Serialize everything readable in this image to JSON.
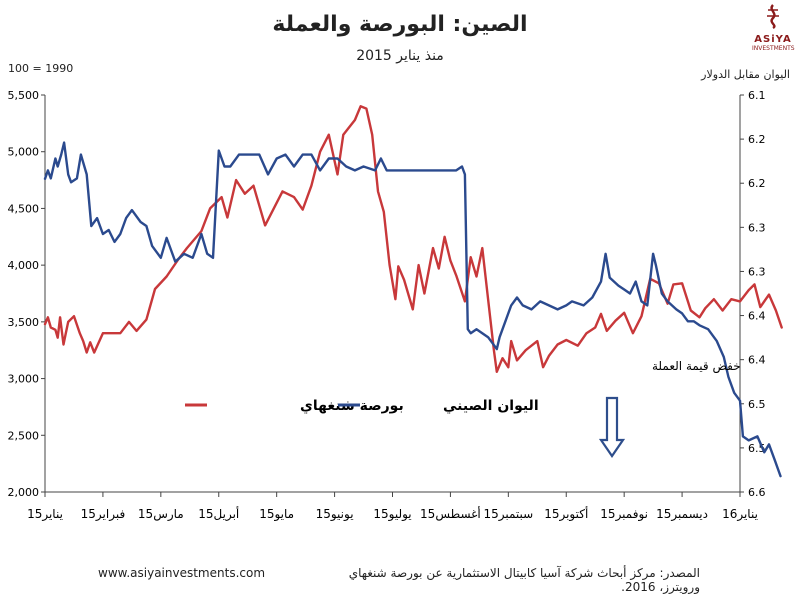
{
  "header": {
    "title": "الصين: البورصة والعملة",
    "subtitle": "منذ يناير 2015",
    "left_unit": "100 = 1990",
    "right_unit": "اليوان مقابل الدولار"
  },
  "brand": {
    "name": "ASiYA",
    "sub": "INVESTMENTS",
    "color": "#8b1a1a"
  },
  "footer": {
    "url": "www.asiyainvestments.com",
    "source": "المصدر: مركز أبحاث شركة آسيا كابيتال الاستثمارية عن بورصة شنغهاي ورويترز، 2016."
  },
  "chart_data": {
    "type": "line",
    "x_labels": [
      "يناير15",
      "فبراير15",
      "مارس15",
      "أبريل15",
      "مايو15",
      "يونيو15",
      "يوليو15",
      "أغسطس15",
      "سبتمبر15",
      "أكتوبر15",
      "نوفمبر15",
      "ديسمبر15",
      "يناير16"
    ],
    "y_left": {
      "min": 2000,
      "max": 5500,
      "ticks": [
        "2,000",
        "2,500",
        "3,000",
        "3,500",
        "4,000",
        "4,500",
        "5,000",
        "5,500"
      ]
    },
    "y_right": {
      "min": 6.1,
      "max": 6.6,
      "inverted": true,
      "ticks": [
        "6.1",
        "6.2",
        "6.2",
        "6.3",
        "6.3",
        "6.4",
        "6.4",
        "6.5",
        "6.5",
        "6.6"
      ]
    },
    "legend": {
      "placement": "center-left"
    },
    "annotation": {
      "text": "خفض قيمة العملة",
      "color": "#2e4e8c"
    },
    "series": [
      {
        "name": "بورصة شنغهاي",
        "axis": "left",
        "color": "#c8383a",
        "values": [
          [
            0,
            3480
          ],
          [
            0.05,
            3540
          ],
          [
            0.1,
            3450
          ],
          [
            0.18,
            3430
          ],
          [
            0.22,
            3360
          ],
          [
            0.26,
            3540
          ],
          [
            0.32,
            3300
          ],
          [
            0.36,
            3400
          ],
          [
            0.4,
            3500
          ],
          [
            0.5,
            3550
          ],
          [
            0.6,
            3400
          ],
          [
            0.66,
            3330
          ],
          [
            0.72,
            3230
          ],
          [
            0.78,
            3320
          ],
          [
            0.85,
            3230
          ],
          [
            1,
            3400
          ],
          [
            1.3,
            3400
          ],
          [
            1.45,
            3500
          ],
          [
            1.58,
            3420
          ],
          [
            1.75,
            3520
          ],
          [
            1.9,
            3790
          ],
          [
            2.1,
            3900
          ],
          [
            2.3,
            4050
          ],
          [
            2.45,
            4150
          ],
          [
            2.7,
            4300
          ],
          [
            2.85,
            4500
          ],
          [
            3.05,
            4600
          ],
          [
            3.15,
            4420
          ],
          [
            3.3,
            4750
          ],
          [
            3.45,
            4630
          ],
          [
            3.6,
            4700
          ],
          [
            3.8,
            4350
          ],
          [
            3.95,
            4500
          ],
          [
            4.1,
            4650
          ],
          [
            4.3,
            4600
          ],
          [
            4.45,
            4490
          ],
          [
            4.6,
            4700
          ],
          [
            4.75,
            5000
          ],
          [
            4.9,
            5150
          ],
          [
            5.05,
            4800
          ],
          [
            5.15,
            5150
          ],
          [
            5.35,
            5280
          ],
          [
            5.45,
            5400
          ],
          [
            5.55,
            5380
          ],
          [
            5.65,
            5150
          ],
          [
            5.75,
            4650
          ],
          [
            5.85,
            4470
          ],
          [
            5.95,
            4000
          ],
          [
            6.05,
            3700
          ],
          [
            6.1,
            3990
          ],
          [
            6.2,
            3870
          ],
          [
            6.35,
            3610
          ],
          [
            6.45,
            4000
          ],
          [
            6.55,
            3750
          ],
          [
            6.7,
            4150
          ],
          [
            6.8,
            3970
          ],
          [
            6.9,
            4250
          ],
          [
            7.0,
            4040
          ],
          [
            7.1,
            3910
          ],
          [
            7.25,
            3680
          ],
          [
            7.35,
            4070
          ],
          [
            7.45,
            3900
          ],
          [
            7.55,
            4150
          ],
          [
            7.65,
            3700
          ],
          [
            7.75,
            3250
          ],
          [
            7.8,
            3060
          ],
          [
            7.9,
            3180
          ],
          [
            8.0,
            3100
          ],
          [
            8.05,
            3330
          ],
          [
            8.15,
            3160
          ],
          [
            8.3,
            3250
          ],
          [
            8.5,
            3330
          ],
          [
            8.6,
            3100
          ],
          [
            8.7,
            3200
          ],
          [
            8.85,
            3300
          ],
          [
            9.0,
            3340
          ],
          [
            9.2,
            3290
          ],
          [
            9.35,
            3400
          ],
          [
            9.5,
            3450
          ],
          [
            9.6,
            3570
          ],
          [
            9.7,
            3420
          ],
          [
            9.85,
            3510
          ],
          [
            10.0,
            3580
          ],
          [
            10.15,
            3400
          ],
          [
            10.3,
            3550
          ],
          [
            10.45,
            3880
          ],
          [
            10.6,
            3840
          ],
          [
            10.75,
            3660
          ],
          [
            10.85,
            3830
          ],
          [
            11.0,
            3840
          ],
          [
            11.15,
            3600
          ],
          [
            11.3,
            3540
          ],
          [
            11.4,
            3620
          ],
          [
            11.55,
            3700
          ],
          [
            11.7,
            3600
          ],
          [
            11.85,
            3700
          ],
          [
            12.0,
            3680
          ],
          [
            12.15,
            3780
          ],
          [
            12.25,
            3830
          ],
          [
            12.35,
            3630
          ],
          [
            12.5,
            3740
          ],
          [
            12.62,
            3600
          ],
          [
            12.72,
            3450
          ]
        ]
      },
      {
        "name": "اليوان الصيني",
        "axis": "right",
        "color": "#2b4a8e",
        "values": [
          [
            0,
            6.2055
          ],
          [
            0.05,
            6.195
          ],
          [
            0.1,
            6.205
          ],
          [
            0.18,
            6.18
          ],
          [
            0.22,
            6.19
          ],
          [
            0.28,
            6.175
          ],
          [
            0.33,
            6.16
          ],
          [
            0.4,
            6.2
          ],
          [
            0.45,
            6.21
          ],
          [
            0.55,
            6.205
          ],
          [
            0.62,
            6.175
          ],
          [
            0.66,
            6.185
          ],
          [
            0.72,
            6.2
          ],
          [
            0.8,
            6.265
          ],
          [
            0.9,
            6.255
          ],
          [
            1.0,
            6.275
          ],
          [
            1.1,
            6.27
          ],
          [
            1.2,
            6.285
          ],
          [
            1.3,
            6.275
          ],
          [
            1.4,
            6.255
          ],
          [
            1.5,
            6.245
          ],
          [
            1.65,
            6.26
          ],
          [
            1.75,
            6.265
          ],
          [
            1.85,
            6.29
          ],
          [
            2.0,
            6.305
          ],
          [
            2.1,
            6.28
          ],
          [
            2.25,
            6.31
          ],
          [
            2.4,
            6.3
          ],
          [
            2.55,
            6.305
          ],
          [
            2.7,
            6.275
          ],
          [
            2.8,
            6.3
          ],
          [
            2.9,
            6.305
          ],
          [
            3.0,
            6.17
          ],
          [
            3.1,
            6.19
          ],
          [
            3.2,
            6.19
          ],
          [
            3.35,
            6.175
          ],
          [
            3.5,
            6.175
          ],
          [
            3.7,
            6.175
          ],
          [
            3.85,
            6.2
          ],
          [
            4.0,
            6.18
          ],
          [
            4.15,
            6.175
          ],
          [
            4.3,
            6.19
          ],
          [
            4.45,
            6.175
          ],
          [
            4.6,
            6.175
          ],
          [
            4.75,
            6.195
          ],
          [
            4.9,
            6.18
          ],
          [
            5.05,
            6.18
          ],
          [
            5.2,
            6.19
          ],
          [
            5.35,
            6.195
          ],
          [
            5.5,
            6.19
          ],
          [
            5.7,
            6.195
          ],
          [
            5.8,
            6.18
          ],
          [
            5.9,
            6.195
          ],
          [
            6.05,
            6.195
          ],
          [
            6.3,
            6.195
          ],
          [
            6.6,
            6.195
          ],
          [
            6.9,
            6.195
          ],
          [
            7.1,
            6.195
          ],
          [
            7.2,
            6.19
          ],
          [
            7.25,
            6.2
          ],
          [
            7.3,
            6.395
          ],
          [
            7.35,
            6.4
          ],
          [
            7.45,
            6.395
          ],
          [
            7.55,
            6.4
          ],
          [
            7.65,
            6.405
          ],
          [
            7.75,
            6.415
          ],
          [
            7.8,
            6.42
          ],
          [
            7.85,
            6.405
          ],
          [
            7.95,
            6.385
          ],
          [
            8.05,
            6.365
          ],
          [
            8.15,
            6.355
          ],
          [
            8.25,
            6.365
          ],
          [
            8.4,
            6.37
          ],
          [
            8.55,
            6.36
          ],
          [
            8.7,
            6.365
          ],
          [
            8.85,
            6.37
          ],
          [
            9.0,
            6.365
          ],
          [
            9.1,
            6.36
          ],
          [
            9.3,
            6.365
          ],
          [
            9.45,
            6.355
          ],
          [
            9.6,
            6.335
          ],
          [
            9.68,
            6.3
          ],
          [
            9.75,
            6.33
          ],
          [
            9.9,
            6.34
          ],
          [
            10.0,
            6.345
          ],
          [
            10.1,
            6.35
          ],
          [
            10.2,
            6.335
          ],
          [
            10.3,
            6.36
          ],
          [
            10.4,
            6.365
          ],
          [
            10.5,
            6.3
          ],
          [
            10.55,
            6.315
          ],
          [
            10.65,
            6.35
          ],
          [
            10.75,
            6.36
          ],
          [
            10.9,
            6.37
          ],
          [
            11.0,
            6.375
          ],
          [
            11.1,
            6.385
          ],
          [
            11.2,
            6.385
          ],
          [
            11.3,
            6.39
          ],
          [
            11.45,
            6.395
          ],
          [
            11.6,
            6.41
          ],
          [
            11.72,
            6.43
          ],
          [
            11.8,
            6.455
          ],
          [
            11.9,
            6.475
          ],
          [
            12.0,
            6.485
          ],
          [
            12.05,
            6.53
          ],
          [
            12.15,
            6.535
          ],
          [
            12.3,
            6.53
          ],
          [
            12.42,
            6.55
          ],
          [
            12.5,
            6.54
          ],
          [
            12.6,
            6.56
          ],
          [
            12.7,
            6.58
          ]
        ]
      }
    ]
  }
}
